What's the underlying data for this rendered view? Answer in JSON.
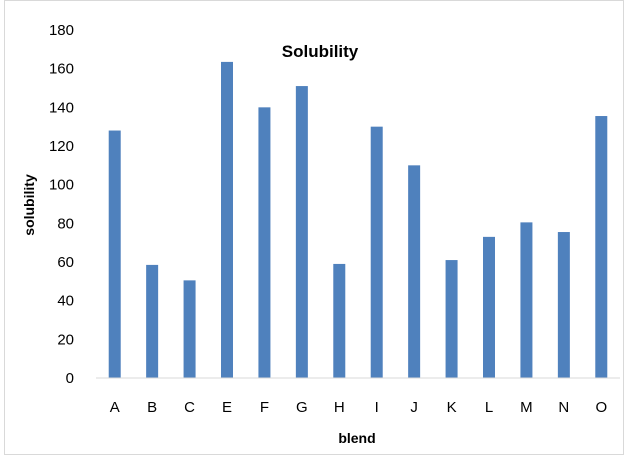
{
  "chart_data": {
    "type": "bar",
    "title": "Solubility",
    "xlabel": "blend",
    "ylabel": "solubility",
    "categories": [
      "A",
      "B",
      "C",
      "E",
      "F",
      "G",
      "H",
      "I",
      "J",
      "K",
      "L",
      "M",
      "N",
      "O"
    ],
    "series": [
      {
        "values": [
          128,
          58.5,
          50.5,
          163.5,
          140,
          151,
          59,
          130,
          110,
          61,
          73,
          80.5,
          75.5,
          135.5
        ]
      }
    ],
    "ylim": [
      0,
      180
    ],
    "yticks": [
      0,
      20,
      40,
      60,
      80,
      100,
      120,
      140,
      160,
      180
    ],
    "grid": false,
    "legend": "none",
    "colors": {
      "bar": "#4f81bd",
      "axis": "#d9d9d9",
      "text": "#000000"
    }
  }
}
